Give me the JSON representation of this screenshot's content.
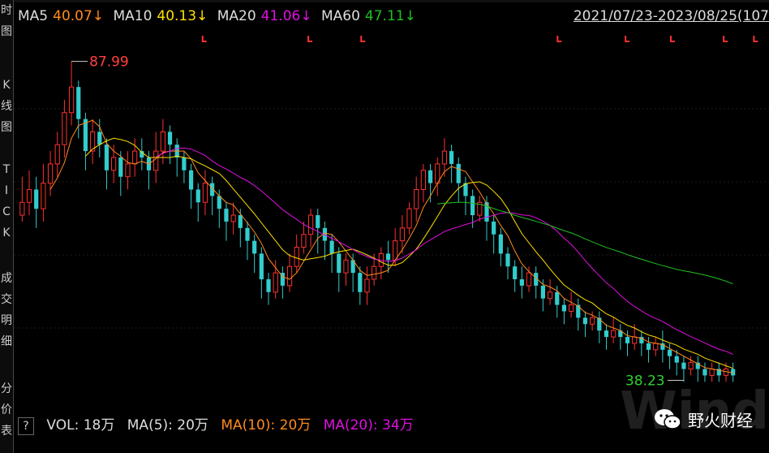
{
  "sidebar": {
    "tabs": [
      {
        "label": "时\n图",
        "name": "tab-time-chart"
      },
      {
        "label": "K\n线\n图",
        "name": "tab-kline-chart"
      },
      {
        "label": "T\nI\nC\nK",
        "name": "tab-tick"
      },
      {
        "label": "成\n交\n明\n细",
        "name": "tab-deal-detail"
      },
      {
        "label": "分\n价\n表",
        "name": "tab-price-table"
      }
    ]
  },
  "legend": {
    "ma5": {
      "label": "MA5",
      "value": "40.07↓",
      "color": "#ff8a1e"
    },
    "ma10": {
      "label": "MA10",
      "value": "40.13↓",
      "color": "#ffe000"
    },
    "ma20": {
      "label": "MA20",
      "value": "41.06↓",
      "color": "#e010e0"
    },
    "ma60": {
      "label": "MA60",
      "value": "47.11↓",
      "color": "#20c020"
    },
    "label_color": "#dddddd"
  },
  "date_range": "2021/07/23-2023/08/25(107",
  "annotations": {
    "high": "87.99",
    "low": "38.23",
    "high_color": "#ff4040",
    "low_color": "#30d030"
  },
  "volume_legend": {
    "help": "?",
    "vol": "VOL: 18万",
    "ma5": {
      "text": "MA(5): 20万",
      "color": "#dddddd"
    },
    "ma10": {
      "text": "MA(10): 20万",
      "color": "#ff8a1e"
    },
    "ma20": {
      "text": "MA(20): 34万",
      "color": "#e010e0"
    }
  },
  "watermark": {
    "text": "野火财经",
    "bg_text": "Wind"
  },
  "chart_data": {
    "type": "candlestick",
    "ylim": [
      35,
      92
    ],
    "high_marker": 87.99,
    "low_marker": 38.23,
    "candles": [
      [
        64,
        66,
        63,
        70
      ],
      [
        66,
        68,
        64,
        71
      ],
      [
        68,
        65,
        62,
        70
      ],
      [
        65,
        69,
        63,
        72
      ],
      [
        69,
        72,
        67,
        74
      ],
      [
        72,
        75,
        70,
        77
      ],
      [
        75,
        80,
        73,
        82
      ],
      [
        80,
        84,
        78,
        88
      ],
      [
        84,
        79,
        76,
        85
      ],
      [
        79,
        74,
        71,
        80
      ],
      [
        74,
        77,
        72,
        79
      ],
      [
        77,
        75,
        73,
        79
      ],
      [
        75,
        71,
        68,
        76
      ],
      [
        71,
        73,
        69,
        75
      ],
      [
        73,
        70,
        67,
        74
      ],
      [
        70,
        72,
        68,
        74
      ],
      [
        72,
        74,
        70,
        76
      ],
      [
        74,
        73,
        71,
        76
      ],
      [
        73,
        71,
        68,
        74
      ],
      [
        71,
        74,
        69,
        77
      ],
      [
        74,
        77,
        72,
        79
      ],
      [
        77,
        75,
        72,
        78
      ],
      [
        75,
        73,
        70,
        76
      ],
      [
        73,
        71,
        69,
        74
      ],
      [
        71,
        68,
        65,
        72
      ],
      [
        68,
        66,
        63,
        69
      ],
      [
        66,
        69,
        64,
        71
      ],
      [
        69,
        67,
        64,
        70
      ],
      [
        67,
        65,
        62,
        68
      ],
      [
        65,
        63,
        60,
        66
      ],
      [
        63,
        64,
        61,
        66
      ],
      [
        64,
        62,
        59,
        65
      ],
      [
        62,
        60,
        57,
        63
      ],
      [
        60,
        58,
        55,
        61
      ],
      [
        58,
        54,
        51,
        59
      ],
      [
        54,
        52,
        50,
        55
      ],
      [
        52,
        55,
        51,
        57
      ],
      [
        55,
        53,
        51,
        56
      ],
      [
        53,
        56,
        52,
        58
      ],
      [
        56,
        59,
        55,
        61
      ],
      [
        59,
        61,
        58,
        63
      ],
      [
        61,
        64,
        59,
        65
      ],
      [
        64,
        62,
        58,
        65
      ],
      [
        62,
        60,
        57,
        63
      ],
      [
        60,
        58,
        55,
        61
      ],
      [
        58,
        55,
        52,
        59
      ],
      [
        55,
        57,
        53,
        58
      ],
      [
        57,
        55,
        52,
        58
      ],
      [
        55,
        52,
        50,
        56
      ],
      [
        52,
        54,
        50,
        56
      ],
      [
        54,
        56,
        53,
        58
      ],
      [
        56,
        58,
        54,
        59
      ],
      [
        58,
        57,
        55,
        60
      ],
      [
        57,
        60,
        56,
        62
      ],
      [
        60,
        62,
        58,
        64
      ],
      [
        62,
        65,
        61,
        66
      ],
      [
        65,
        68,
        63,
        70
      ],
      [
        68,
        71,
        66,
        72
      ],
      [
        71,
        69,
        66,
        72
      ],
      [
        69,
        72,
        67,
        73
      ],
      [
        72,
        74,
        70,
        76
      ],
      [
        74,
        72,
        69,
        75
      ],
      [
        72,
        69,
        66,
        73
      ],
      [
        69,
        67,
        64,
        70
      ],
      [
        67,
        64,
        62,
        68
      ],
      [
        64,
        66,
        63,
        67
      ],
      [
        66,
        63,
        60,
        67
      ],
      [
        63,
        61,
        58,
        64
      ],
      [
        61,
        58,
        56,
        62
      ],
      [
        58,
        56,
        54,
        59
      ],
      [
        56,
        54,
        52,
        57
      ],
      [
        54,
        53,
        51,
        56
      ],
      [
        53,
        55,
        52,
        56
      ],
      [
        55,
        53,
        51,
        56
      ],
      [
        53,
        51,
        49,
        54
      ],
      [
        51,
        52,
        50,
        54
      ],
      [
        52,
        50,
        48,
        53
      ],
      [
        50,
        49,
        47,
        51
      ],
      [
        49,
        50,
        48,
        52
      ],
      [
        50,
        48,
        46,
        51
      ],
      [
        48,
        47,
        45,
        49
      ],
      [
        47,
        48,
        46,
        49
      ],
      [
        48,
        46,
        44,
        49
      ],
      [
        46,
        45,
        43,
        47
      ],
      [
        45,
        46,
        44,
        48
      ],
      [
        46,
        45,
        43,
        47
      ],
      [
        45,
        44,
        42,
        46
      ],
      [
        44,
        45,
        43,
        47
      ],
      [
        45,
        44,
        42,
        46
      ],
      [
        44,
        43,
        41,
        45
      ],
      [
        43,
        44,
        42,
        45
      ],
      [
        44,
        43,
        41,
        46
      ],
      [
        43,
        42,
        40,
        44
      ],
      [
        42,
        41,
        39,
        43
      ],
      [
        41,
        40,
        38,
        42
      ],
      [
        40,
        41,
        39,
        42
      ],
      [
        41,
        40,
        38,
        42
      ],
      [
        40,
        39,
        38,
        41
      ],
      [
        39,
        40,
        38,
        41
      ],
      [
        40,
        39,
        38,
        41
      ],
      [
        39,
        40,
        38,
        41
      ],
      [
        40,
        39,
        38,
        41
      ]
    ]
  }
}
